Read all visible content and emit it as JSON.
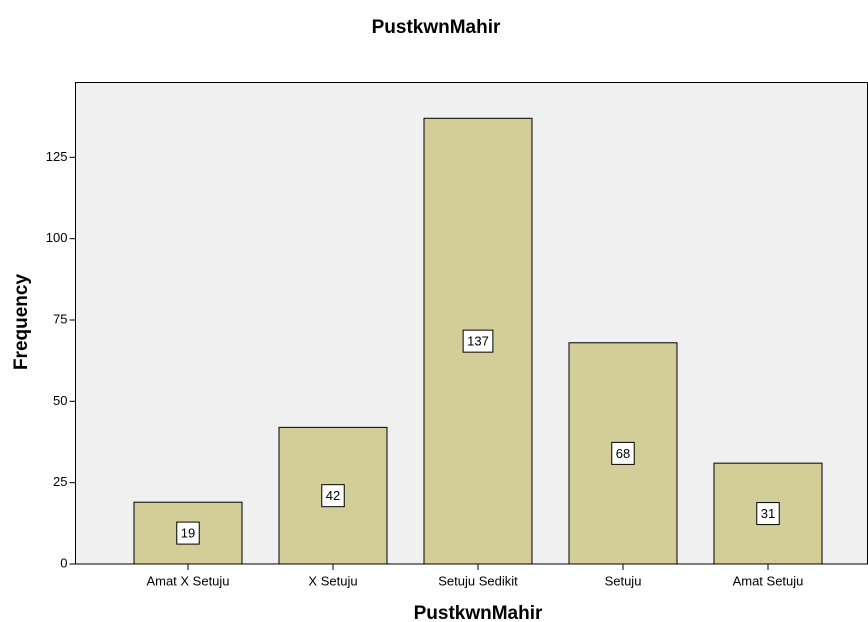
{
  "chart_data": {
    "type": "bar",
    "title": "PustkwnMahir",
    "x_label": "PustkwnMahir",
    "y_label": "Frequency",
    "categories": [
      "Amat X Setuju",
      "X Setuju",
      "Setuju Sedikit",
      "Setuju",
      "Amat Setuju"
    ],
    "values": [
      19,
      42,
      137,
      68,
      31
    ],
    "color": "#d3ce97",
    "ylim": [
      0,
      148
    ],
    "yticks": [
      0,
      25,
      50,
      75,
      100,
      125
    ],
    "grid": false
  }
}
